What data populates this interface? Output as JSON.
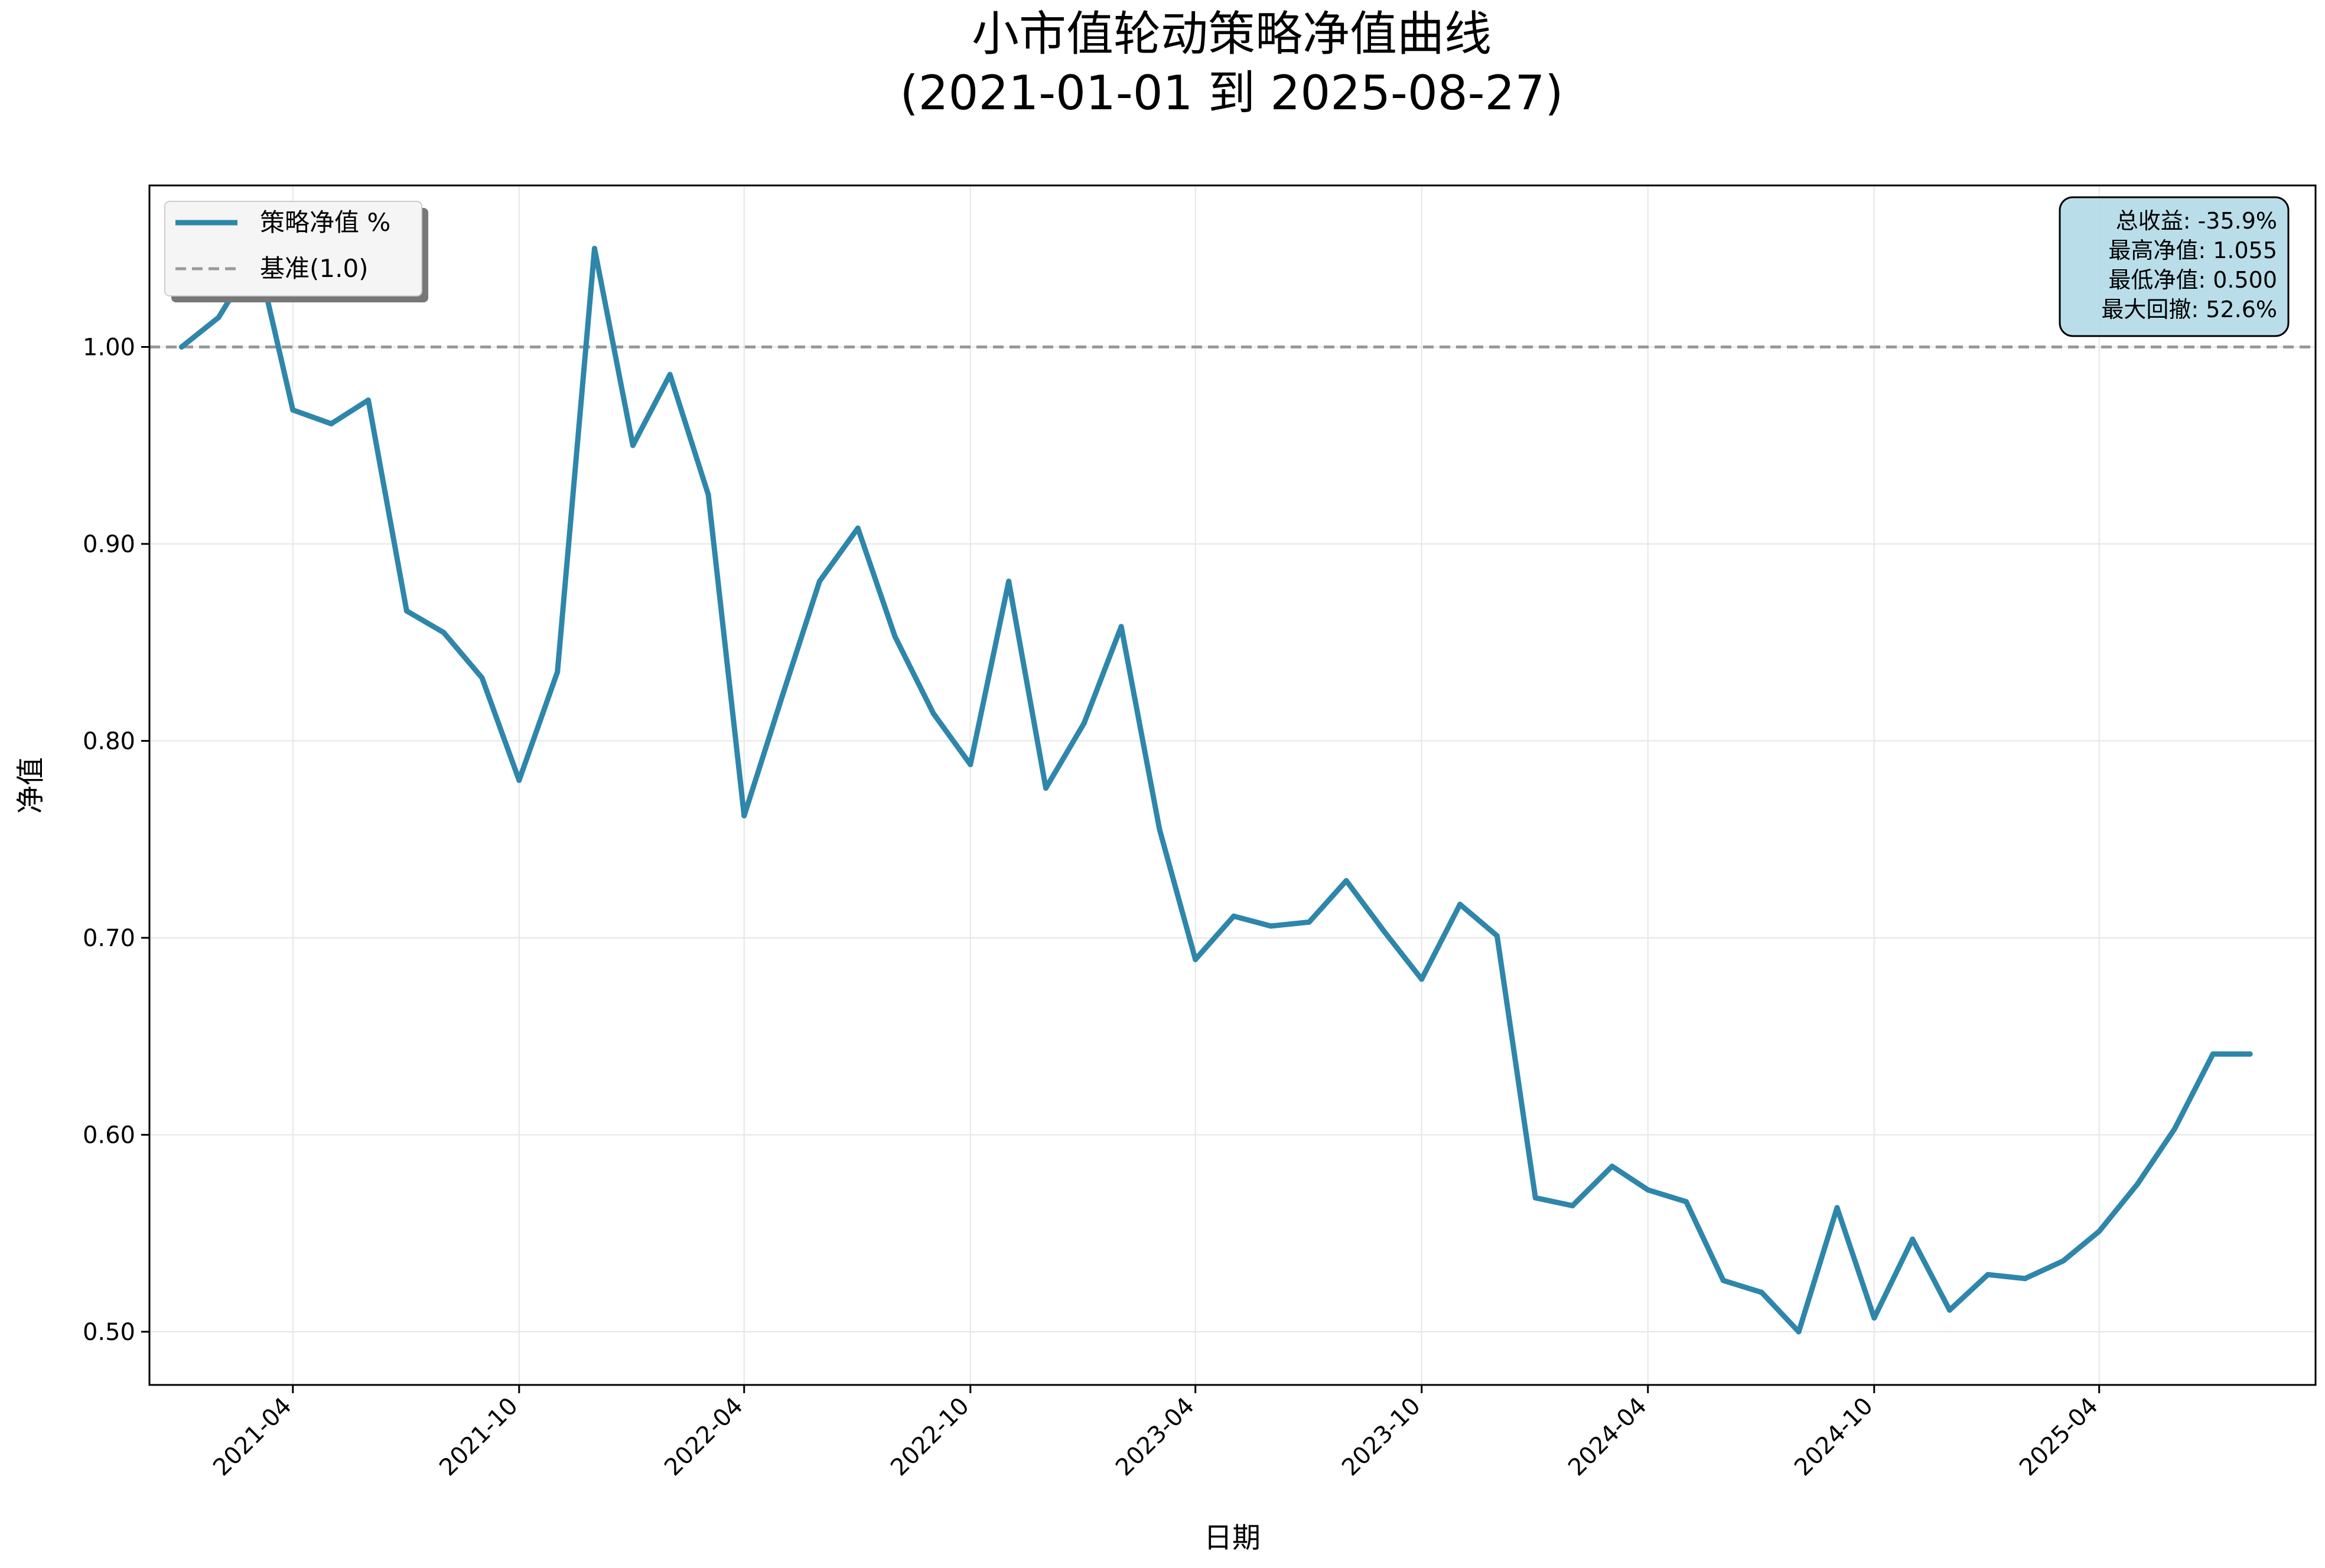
{
  "colors": {
    "series": "#2e86ab",
    "baseline": "#999999",
    "grid": "#e6e6e6",
    "stats_box_bg": "#add8e6",
    "legend_bg": "#f5f5f5"
  },
  "chart_data": {
    "type": "line",
    "title": [
      "小市值轮动策略净值曲线",
      "(2021-01-01 到 2025-08-27)"
    ],
    "xlabel": "日期",
    "ylabel": "净值",
    "xlim": [
      "2020-12-06",
      "2025-09-23"
    ],
    "ylim": [
      0.473,
      1.082
    ],
    "x_ticks": [
      "2021-04",
      "2021-10",
      "2022-04",
      "2022-10",
      "2023-04",
      "2023-10",
      "2024-04",
      "2024-10",
      "2025-04"
    ],
    "y_ticks": [
      "0.50",
      "0.60",
      "0.70",
      "0.80",
      "0.90",
      "1.00"
    ],
    "grid": true,
    "legend_position": "top-left",
    "series": [
      {
        "name": "策略净值 %",
        "style": "solid",
        "x": [
          "2021-01-01",
          "2021-01-31",
          "2021-03-03",
          "2021-04-01",
          "2021-05-02",
          "2021-06-01",
          "2021-07-02",
          "2021-08-01",
          "2021-09-01",
          "2021-10-01",
          "2021-11-01",
          "2021-12-01",
          "2022-01-01",
          "2022-01-31",
          "2022-03-03",
          "2022-04-01",
          "2022-05-02",
          "2022-06-01",
          "2022-07-02",
          "2022-08-01",
          "2022-09-01",
          "2022-10-01",
          "2022-11-01",
          "2022-12-01",
          "2023-01-01",
          "2023-01-31",
          "2023-03-03",
          "2023-04-01",
          "2023-05-02",
          "2023-06-01",
          "2023-07-02",
          "2023-08-01",
          "2023-09-01",
          "2023-10-01",
          "2023-11-01",
          "2023-12-01",
          "2024-01-01",
          "2024-01-31",
          "2024-03-03",
          "2024-04-01",
          "2024-05-02",
          "2024-06-01",
          "2024-07-02",
          "2024-08-01",
          "2024-09-01",
          "2024-10-01",
          "2024-11-01",
          "2024-12-01",
          "2025-01-01",
          "2025-01-31",
          "2025-03-03",
          "2025-04-01",
          "2025-05-02",
          "2025-06-01",
          "2025-07-02",
          "2025-08-01"
        ],
        "values": [
          1.0,
          1.015,
          1.047,
          0.968,
          0.961,
          0.973,
          0.866,
          0.855,
          0.832,
          0.78,
          0.835,
          1.05,
          0.95,
          0.986,
          0.925,
          0.762,
          0.823,
          0.881,
          0.908,
          0.853,
          0.814,
          0.788,
          0.881,
          0.776,
          0.809,
          0.858,
          0.755,
          0.689,
          0.711,
          0.706,
          0.708,
          0.729,
          0.703,
          0.679,
          0.717,
          0.701,
          0.568,
          0.564,
          0.584,
          0.572,
          0.566,
          0.526,
          0.52,
          0.5,
          0.563,
          0.507,
          0.547,
          0.511,
          0.529,
          0.527,
          0.536,
          0.551,
          0.575,
          0.603,
          0.641,
          0.641
        ]
      },
      {
        "name": "基准(1.0)",
        "style": "dashed",
        "constant": 1.0
      }
    ],
    "stats_box": {
      "position": "top-right",
      "lines": [
        "总收益: -35.9%",
        "最高净值: 1.055",
        "最低净值: 0.500",
        "最大回撤: 52.6%"
      ]
    }
  }
}
